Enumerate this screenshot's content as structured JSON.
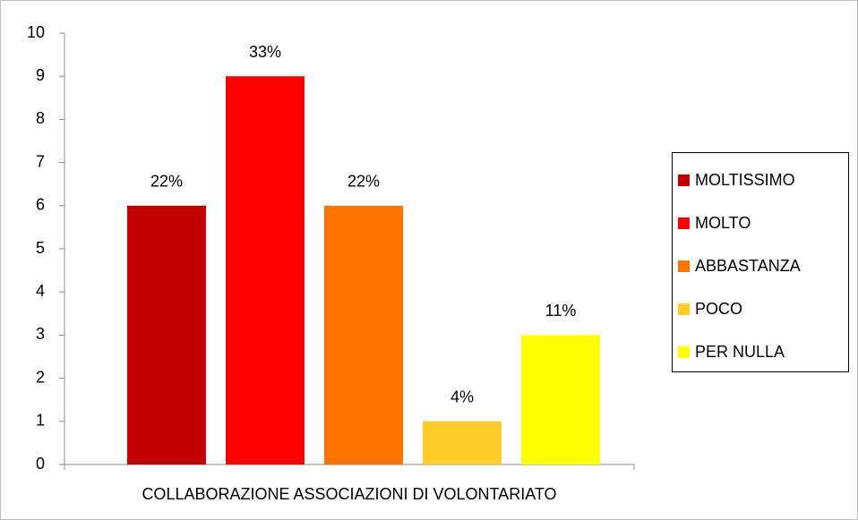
{
  "chart_data": {
    "type": "bar",
    "categories": [
      "COLLABORAZIONE ASSOCIAZIONI DI VOLONTARIATO"
    ],
    "series": [
      {
        "name": "MOLTISSIMO",
        "color": "#C00000",
        "values": [
          6
        ],
        "value_labels": [
          "22%"
        ]
      },
      {
        "name": "MOLTO",
        "color": "#FF0000",
        "values": [
          9
        ],
        "value_labels": [
          "33%"
        ]
      },
      {
        "name": "ABBASTANZA",
        "color": "#FF7300",
        "values": [
          6
        ],
        "value_labels": [
          "22%"
        ]
      },
      {
        "name": "POCO",
        "color": "#FFCC29",
        "values": [
          1
        ],
        "value_labels": [
          "4%"
        ]
      },
      {
        "name": "PER NULLA",
        "color": "#FFFF00",
        "values": [
          3
        ],
        "value_labels": [
          "11%"
        ]
      }
    ],
    "ylim": [
      0,
      10
    ],
    "yticks": [
      0,
      1,
      2,
      3,
      4,
      5,
      6,
      7,
      8,
      9,
      10
    ],
    "grid": false,
    "legend": "right"
  }
}
